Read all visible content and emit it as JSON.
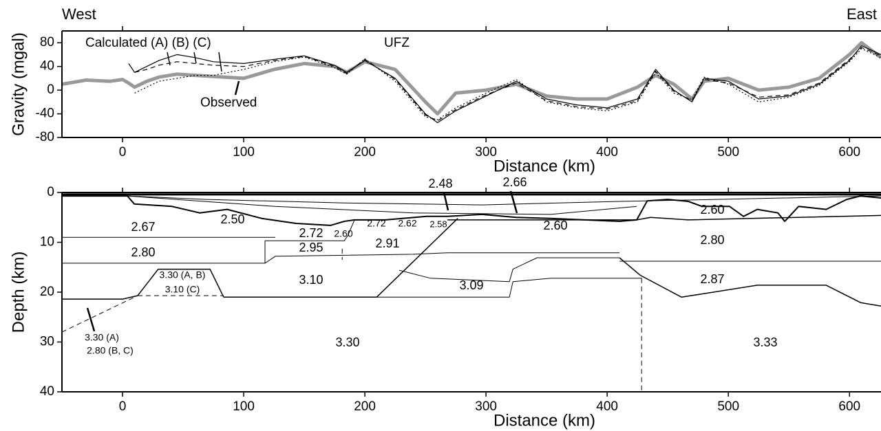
{
  "chart_data": [
    {
      "type": "line",
      "ylabel": "Gravity (mgal)",
      "xlabel": "Distance (km)",
      "annotations": [
        "West",
        "East",
        "Calculated (A) (B) (C)",
        "Observed",
        "UFZ"
      ],
      "xlim": [
        -50,
        626
      ],
      "ylim": [
        -80,
        100
      ],
      "xticks": [
        0,
        100,
        200,
        300,
        400,
        500,
        600
      ],
      "yticks": [
        -80,
        -40,
        0,
        40,
        80
      ],
      "x": [
        -50,
        -30,
        -10,
        0,
        5,
        10,
        20,
        30,
        45,
        60,
        75,
        100,
        125,
        150,
        175,
        185,
        200,
        225,
        250,
        260,
        275,
        300,
        325,
        350,
        375,
        400,
        425,
        440,
        455,
        470,
        480,
        500,
        525,
        550,
        575,
        600,
        610,
        626
      ],
      "series": [
        {
          "color": "#999999",
          "width": 5,
          "dash": "solid",
          "values": [
            10,
            17,
            15,
            18,
            12,
            5,
            15,
            22,
            27,
            25,
            23,
            20,
            35,
            45,
            40,
            30,
            48,
            35,
            -20,
            -40,
            -5,
            0,
            10,
            -10,
            -15,
            -15,
            5,
            25,
            10,
            -15,
            15,
            20,
            0,
            5,
            20,
            60,
            80,
            55
          ]
        },
        {
          "color": "#000000",
          "width": 1.2,
          "dash": "solid",
          "values": [
            null,
            null,
            null,
            null,
            45,
            30,
            40,
            50,
            60,
            55,
            48,
            45,
            52,
            58,
            42,
            30,
            50,
            20,
            -40,
            -55,
            -35,
            -10,
            15,
            -15,
            -25,
            -30,
            -15,
            35,
            0,
            -20,
            20,
            15,
            -15,
            -10,
            10,
            50,
            75,
            60
          ]
        },
        {
          "color": "#000000",
          "width": 1.2,
          "dash": "dashed",
          "values": [
            null,
            null,
            null,
            null,
            null,
            30,
            35,
            42,
            48,
            45,
            42,
            40,
            50,
            57,
            40,
            28,
            52,
            18,
            -42,
            -52,
            -33,
            -8,
            12,
            -18,
            -28,
            -32,
            -18,
            32,
            -2,
            -18,
            18,
            12,
            -12,
            -8,
            12,
            52,
            72,
            58
          ]
        },
        {
          "color": "#000000",
          "width": 1.2,
          "dash": "dotted",
          "values": [
            null,
            null,
            null,
            null,
            null,
            -5,
            5,
            15,
            20,
            25,
            25,
            35,
            48,
            56,
            38,
            27,
            53,
            15,
            -45,
            -50,
            -30,
            -5,
            18,
            -20,
            -30,
            -35,
            -20,
            30,
            -5,
            -16,
            22,
            10,
            -20,
            -12,
            8,
            48,
            70,
            55
          ]
        }
      ]
    },
    {
      "type": "section",
      "ylabel": "Depth (km)",
      "xlabel": "Distance (km)",
      "xlim": [
        -50,
        626
      ],
      "ylim": [
        40,
        0
      ],
      "xticks": [
        0,
        100,
        200,
        300,
        400,
        500,
        600
      ],
      "yticks": [
        0,
        10,
        20,
        30,
        40
      ],
      "annotations": [
        "2.48",
        "2.66",
        "2.67",
        "2.50",
        "2.72",
        "2.60",
        "2.72",
        "2.62",
        "2.58",
        "2.60",
        "2.60",
        "2.80",
        "2.95",
        "2.91",
        "2.80",
        "3.30 (A, B)",
        "3.10 (C)",
        "3.10",
        "3.09",
        "2.87",
        "3.30",
        "3.33",
        "3.30 (A)",
        "2.80 (B, C)"
      ],
      "boundaries": [
        {
          "width": 3,
          "dash": "solid",
          "x": [
            -50,
            626
          ],
          "values": [
            0.4,
            0.4
          ]
        },
        {
          "width": 2,
          "dash": "solid",
          "x": [
            -50,
            4,
            9.7,
            40.9,
            63.6,
            86.4,
            114.8,
            143.2,
            171.6,
            183,
            191.5,
            217,
            251,
            268.2,
            296.6,
            325,
            353.4,
            381.8,
            410.2,
            424.4,
            433,
            450,
            467,
            478.4,
            501,
            512.5,
            523.9,
            540.9,
            546.6,
            558,
            580.7,
            597.7,
            609,
            626.1
          ],
          "values": [
            0.7,
            0.7,
            2.3,
            2.8,
            4.1,
            3.4,
            5.2,
            6.2,
            6.6,
            5.8,
            5.5,
            5.5,
            4.8,
            4.8,
            4.4,
            5.0,
            5.2,
            5.5,
            5.8,
            5.5,
            1.7,
            1.4,
            1.8,
            2.8,
            2.8,
            4.8,
            3.4,
            4.1,
            5.8,
            2.8,
            3.4,
            1.4,
            0.7,
            1.1
          ]
        },
        {
          "width": 1,
          "dash": "solid",
          "x": [
            4,
            69.3,
            183,
            296.6,
            410.2,
            626
          ],
          "values": [
            0.7,
            1.4,
            2.1,
            2.5,
            1.8,
            0.7
          ]
        },
        {
          "width": 1,
          "dash": "solid",
          "x": [
            4,
            126.1,
            239.8,
            353.4,
            424.4
          ],
          "values": [
            0.7,
            2.8,
            4.1,
            4.4,
            2.8
          ]
        },
        {
          "width": 1,
          "dash": "solid",
          "x": [
            -50,
            126.1
          ],
          "values": [
            9.0,
            9.0
          ]
        },
        {
          "width": 1,
          "dash": "solid",
          "x": [
            -50,
            117.6,
            126.1,
            239.8,
            268.2,
            410.2
          ],
          "values": [
            14.2,
            14.2,
            12.8,
            12.4,
            12.1,
            12.1
          ]
        },
        {
          "width": 1,
          "dash": "solid",
          "x": [
            117.6,
            117.6,
            183,
            185.8,
            191.5
          ],
          "values": [
            14.2,
            9.7,
            9.7,
            8.7,
            5.5
          ]
        },
        {
          "width": 1.5,
          "dash": "solid",
          "x": [
            12.5,
            29.5,
            72.2,
            83.5
          ],
          "values": [
            20.7,
            15.4,
            15.4,
            21.0
          ]
        },
        {
          "width": 1.5,
          "dash": "solid",
          "x": [
            -50,
            0,
            12.5
          ],
          "values": [
            21.4,
            21.4,
            20.7
          ]
        },
        {
          "width": 1.5,
          "dash": "solid",
          "x": [
            83.5,
            209.7
          ],
          "values": [
            21.0,
            21.0
          ]
        },
        {
          "width": 1,
          "dash": "dashed",
          "x": [
            -50,
            12.5
          ],
          "values": [
            28.0,
            20.7
          ]
        },
        {
          "width": 1,
          "dash": "dashed",
          "x": [
            12.5,
            83.5
          ],
          "values": [
            20.7,
            20.7
          ]
        },
        {
          "width": 1.5,
          "dash": "solid",
          "x": [
            209.7,
            276.7
          ],
          "values": [
            21.0,
            5.2
          ]
        },
        {
          "width": 1,
          "dash": "solid",
          "x": [
            228.4,
            254,
            319.3,
            322.2,
            342,
            410.2
          ],
          "values": [
            15.6,
            17.2,
            17.9,
            15.4,
            13.1,
            13.1
          ]
        },
        {
          "width": 1,
          "dash": "solid",
          "x": [
            209.7,
            319.3,
            322.2,
            353.4,
            428.4
          ],
          "values": [
            21.0,
            21.0,
            17.9,
            17.2,
            17.2
          ]
        },
        {
          "width": 1.5,
          "dash": "solid",
          "x": [
            410.2,
            427.3,
            461.4,
            523.9,
            580.7,
            609.1,
            626.1
          ],
          "values": [
            13.1,
            16.6,
            21.0,
            18.6,
            18.6,
            22.1,
            22.8
          ]
        },
        {
          "width": 1,
          "dash": "solid",
          "x": [
            410.2,
            626.1
          ],
          "values": [
            13.8,
            13.8
          ]
        },
        {
          "width": 1.5,
          "dash": "solid",
          "x": [
            268.2,
            424.4,
            435.8,
            467,
            626.1
          ],
          "values": [
            5.5,
            5.5,
            5.0,
            5.5,
            4.6
          ]
        },
        {
          "width": 1,
          "dash": "dashed",
          "x": [
            428.4,
            428.4
          ],
          "values": [
            17.2,
            40
          ]
        },
        {
          "width": 1,
          "dash": "dashed",
          "x": [
            181.3,
            181.3
          ],
          "values": [
            11.3,
            13.5
          ]
        }
      ]
    }
  ]
}
